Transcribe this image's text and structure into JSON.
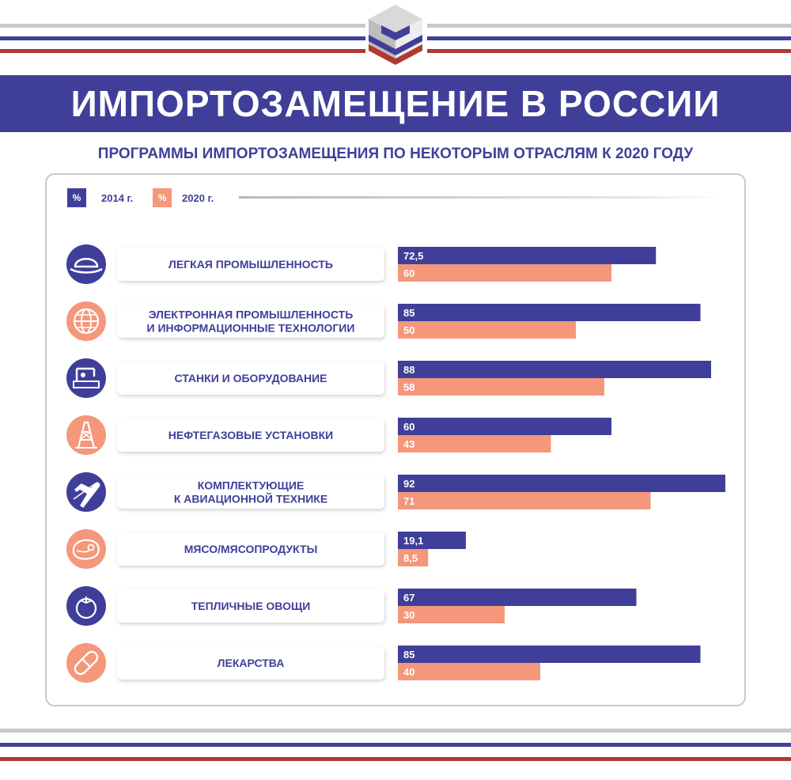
{
  "header": {
    "title": "ИМПОРТОЗАМЕЩЕНИЕ В РОССИИ",
    "subtitle": "ПРОГРАММЫ ИМПОРТОЗАМЕЩЕНИЯ ПО НЕКОТОРЫМ ОТРАСЛЯМ К 2020 ГОДУ"
  },
  "colors": {
    "blue": "#3f3f9a",
    "salmon": "#f4977b",
    "red": "#b03a2e",
    "gray": "#c8c8c8"
  },
  "legend": [
    {
      "symbol": "%",
      "label": "2014 г.",
      "color": "#3f3f9a"
    },
    {
      "symbol": "%",
      "label": "2020 г.",
      "color": "#f4977b"
    }
  ],
  "chart_data": {
    "type": "bar",
    "orientation": "horizontal",
    "categories": [
      [
        "ЛЕГКАЯ ПРОМЫШЛЕННОСТЬ"
      ],
      [
        "ЭЛЕКТРОННАЯ ПРОМЫШЛЕННОСТЬ",
        "И ИНФОРМАЦИОННЫЕ ТЕХНОЛОГИИ"
      ],
      [
        "СТАНКИ И ОБОРУДОВАНИЕ"
      ],
      [
        "НЕФТЕГАЗОВЫЕ УСТАНОВКИ"
      ],
      [
        "КОМПЛЕКТУЮЩИЕ",
        "К АВИАЦИОННОЙ ТЕХНИКЕ"
      ],
      [
        "МЯСО/МЯСОПРОДУКТЫ"
      ],
      [
        "ТЕПЛИЧНЫЕ ОВОЩИ"
      ],
      [
        "ЛЕКАРСТВА"
      ]
    ],
    "icons": [
      "hat-icon",
      "globe-icon",
      "machine-tool-icon",
      "oil-rig-icon",
      "airplane-icon",
      "meat-icon",
      "tomato-icon",
      "pill-icon"
    ],
    "icon_colors": [
      "#3f3f9a",
      "#f4977b",
      "#3f3f9a",
      "#f4977b",
      "#3f3f9a",
      "#f4977b",
      "#3f3f9a",
      "#f4977b"
    ],
    "series": [
      {
        "name": "2014 г.",
        "color": "#3f3f9a",
        "values": [
          72.5,
          85,
          88,
          60,
          92,
          19.1,
          67,
          85
        ],
        "labels": [
          "72,5",
          "85",
          "88",
          "60",
          "92",
          "19,1",
          "67",
          "85"
        ]
      },
      {
        "name": "2020 г.",
        "color": "#f4977b",
        "values": [
          60,
          50,
          58,
          43,
          71,
          8.5,
          30,
          40
        ],
        "labels": [
          "60",
          "50",
          "58",
          "43",
          "71",
          "8,5",
          "30",
          "40"
        ]
      }
    ],
    "unit": "%",
    "xlim": [
      0,
      100
    ]
  }
}
